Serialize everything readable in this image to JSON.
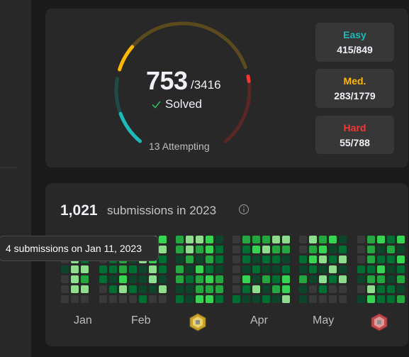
{
  "solved": {
    "count": "753",
    "total": "/3416",
    "solved_label": "Solved",
    "attempting_label": "13 Attempting",
    "progress": {
      "easy": 415,
      "medium": 283,
      "hard": 55,
      "total": 3416,
      "easy_max": 849,
      "medium_max": 1779,
      "hard_max": 788
    }
  },
  "difficulty": [
    {
      "name": "Easy",
      "value": "415/849",
      "color": "#1cbaba"
    },
    {
      "name": "Med.",
      "value": "283/1779",
      "color": "#ffb700"
    },
    {
      "name": "Hard",
      "value": "55/788",
      "color": "#f63737"
    }
  ],
  "submissions": {
    "count": "1,021",
    "label": "submissions in 2023",
    "tooltip": "4 submissions on Jan 11, 2023",
    "months": [
      "Jan",
      "Feb",
      "Apr",
      "May"
    ]
  },
  "badges": [
    "badge-yellow-icon",
    "badge-red-icon"
  ]
}
